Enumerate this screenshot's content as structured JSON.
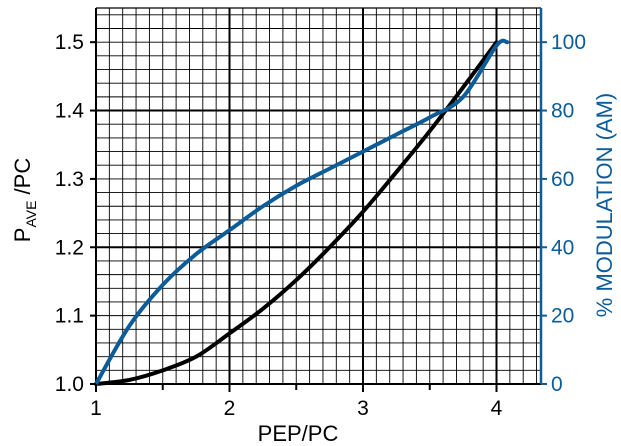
{
  "chart_data": {
    "type": "line",
    "xlabel": "PEP/PC",
    "ylabel_left": {
      "main": "P",
      "sub": "AVE",
      "rest": " /PC"
    },
    "ylabel_right": "% MODULATION (AM)",
    "x_ticks": [
      1,
      2,
      3,
      4
    ],
    "y_left_ticks": [
      "1.0",
      "1.1",
      "1.2",
      "1.3",
      "1.4",
      "1.5"
    ],
    "y_right_ticks": [
      "0",
      "20",
      "40",
      "60",
      "80",
      "100"
    ],
    "xlim": [
      1,
      4.3
    ],
    "ylim_left": [
      1.0,
      1.55
    ],
    "ylim_right": [
      0,
      110
    ],
    "grid": true,
    "colors": {
      "black_series": "#000000",
      "blue_series": "#0b5c99",
      "grid": "#000000"
    },
    "series": [
      {
        "axis": "left",
        "color": "#000000",
        "x": [
          1.0,
          1.25,
          1.5,
          1.75,
          2.0,
          2.25,
          2.5,
          2.75,
          3.0,
          3.25,
          3.5,
          3.75,
          4.0
        ],
        "y": [
          1.0,
          1.006,
          1.02,
          1.04,
          1.074,
          1.11,
          1.152,
          1.2,
          1.252,
          1.31,
          1.37,
          1.434,
          1.5
        ]
      },
      {
        "axis": "right",
        "color": "#0b5c99",
        "x": [
          1.0,
          1.25,
          1.5,
          1.75,
          2.0,
          2.25,
          2.5,
          2.75,
          3.0,
          3.25,
          3.5,
          3.75,
          4.0,
          4.08
        ],
        "y": [
          0,
          17,
          29,
          38,
          45,
          52,
          58,
          63,
          68,
          73,
          78,
          84,
          99,
          100
        ]
      }
    ]
  }
}
